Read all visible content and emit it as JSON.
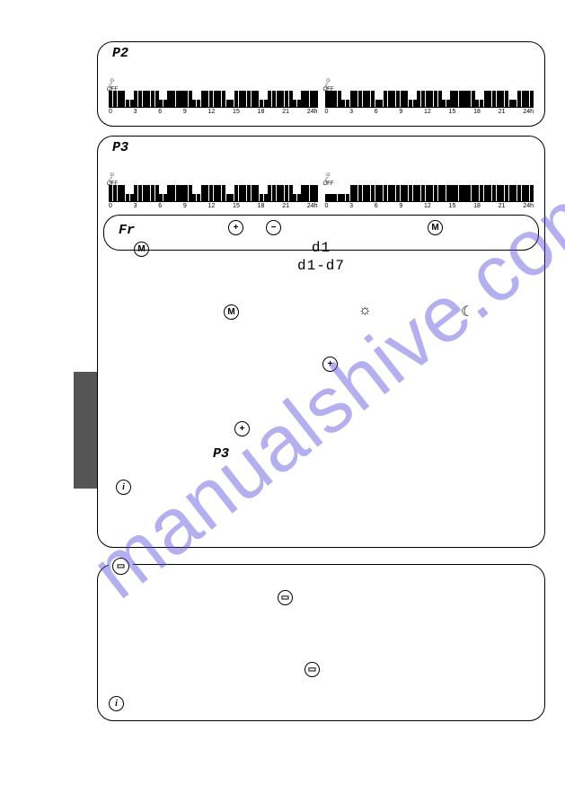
{
  "panels": {
    "p2": {
      "label": "P2"
    },
    "p3": {
      "label": "P3",
      "sublabel": "P3"
    },
    "fr": {
      "label": "Fr"
    }
  },
  "lcd": {
    "line1": "d1",
    "line2": "d1-d7"
  },
  "timeline": {
    "ticks": [
      "0",
      "3",
      "6",
      "9",
      "12",
      "15",
      "18",
      "21",
      "24h"
    ],
    "off": "OFF",
    "p2_left": "hhhhllhhhhhhllhhhhhhllhhhhhhllhhhhhhllhhhhhhllhhhh",
    "p2_right": "hhhhllhhhhhhllhhhhhhllhhhhhhllhhhhhhllhhhhhhllhhhh",
    "p3_left": "hhhhllhhhhhhllhhhhhhllhhhhhhllhhhhhhllhhhhhhllhhhh",
    "p3_right": "llllllhhhhhhhhhhhhhhhhhhhhhhhhhhhhhhhhhhhhhhhhhhhh"
  },
  "icons": {
    "plus": "+",
    "minus": "−",
    "m": "M",
    "info": "i",
    "window": "▭",
    "sun": "☼",
    "moon": "☾"
  },
  "watermark": "manualshive.com",
  "colors": {
    "border": "#000000",
    "sidetab": "#555555",
    "watermark": "rgba(88,80,220,0.45)",
    "bg": "#ffffff"
  }
}
